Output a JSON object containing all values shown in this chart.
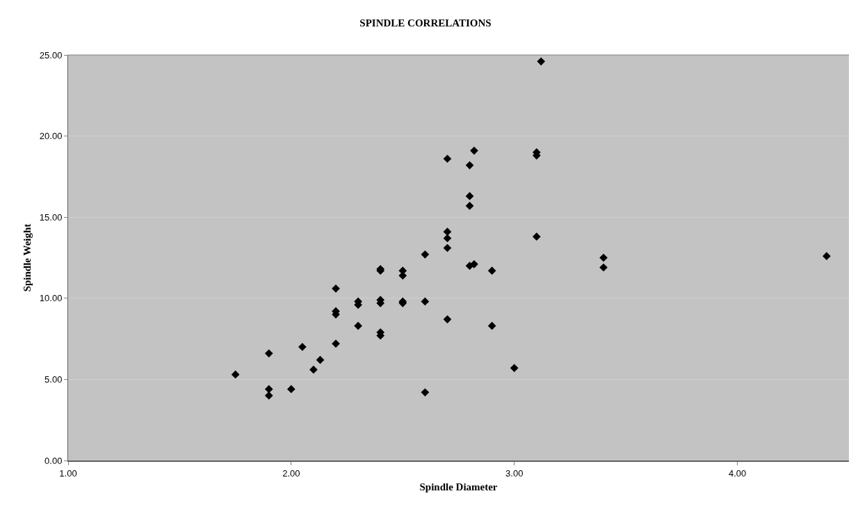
{
  "chart_data": {
    "type": "scatter",
    "title": "SPINDLE CORRELATIONS",
    "xlabel": "Spindle Diameter",
    "ylabel": "Spindle Weight",
    "x": [
      1.75,
      1.9,
      1.9,
      1.9,
      2.0,
      2.05,
      2.1,
      2.13,
      2.2,
      2.2,
      2.2,
      2.2,
      2.3,
      2.3,
      2.3,
      2.4,
      2.4,
      2.4,
      2.4,
      2.4,
      2.4,
      2.5,
      2.5,
      2.5,
      2.5,
      2.6,
      2.6,
      2.6,
      2.7,
      2.7,
      2.7,
      2.7,
      2.7,
      2.8,
      2.8,
      2.8,
      2.8,
      2.82,
      2.82,
      2.9,
      2.9,
      3.0,
      3.1,
      3.1,
      3.1,
      3.12,
      3.4,
      3.4,
      4.4
    ],
    "values": [
      5.3,
      6.6,
      4.4,
      4.0,
      4.4,
      7.0,
      5.6,
      6.2,
      10.6,
      9.2,
      9.0,
      7.2,
      9.8,
      9.6,
      8.3,
      11.8,
      11.7,
      9.9,
      9.7,
      7.9,
      7.7,
      11.7,
      11.4,
      9.8,
      9.7,
      12.7,
      9.8,
      4.2,
      18.6,
      14.1,
      13.7,
      13.1,
      8.7,
      18.2,
      16.3,
      15.7,
      12.0,
      19.1,
      12.1,
      11.7,
      8.3,
      5.7,
      19.0,
      18.8,
      13.8,
      24.6,
      12.5,
      11.9,
      12.6
    ],
    "color": "#000000",
    "marker": "diamond",
    "grid": "y",
    "xlim": [
      1,
      4.5
    ],
    "xticks": [
      {
        "value": 1,
        "label": "1.00"
      },
      {
        "value": 2,
        "label": "2.00"
      },
      {
        "value": 3,
        "label": "3.00"
      },
      {
        "value": 4,
        "label": "4.00"
      }
    ],
    "ylim": [
      0,
      25
    ],
    "yticks": [
      {
        "value": 0,
        "label": "0.00"
      },
      {
        "value": 5,
        "label": "5.00"
      },
      {
        "value": 10,
        "label": "10.00"
      },
      {
        "value": 15,
        "label": "15.00"
      },
      {
        "value": 20,
        "label": "20.00"
      },
      {
        "value": 25,
        "label": "25.00"
      }
    ]
  }
}
